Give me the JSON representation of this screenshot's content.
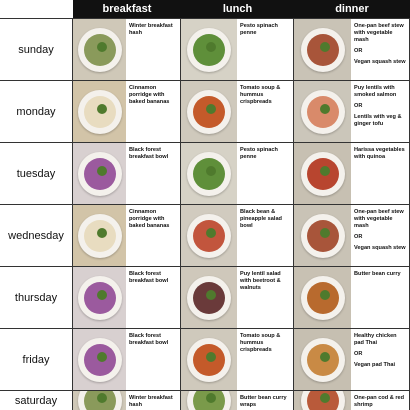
{
  "header": {
    "breakfast": "breakfast",
    "lunch": "lunch",
    "dinner": "dinner"
  },
  "rows": [
    {
      "day": "sunday",
      "breakfast": {
        "text": "Winter breakfast hash",
        "food": "#8a9a5b",
        "bg": "#cfc8b8"
      },
      "lunch": {
        "text": "Pesto spinach penne",
        "food": "#5f8f3a",
        "bg": "#d6d2c6"
      },
      "dinner": {
        "text": "One-pan beef stew with vegetable mash",
        "or": "OR",
        "alt": "Vegan squash stew",
        "food": "#a8553a",
        "bg": "#c9c3b6"
      }
    },
    {
      "day": "monday",
      "breakfast": {
        "text": "Cinnamon porridge with baked bananas",
        "food": "#e8dcc0",
        "bg": "#d2c4a8"
      },
      "lunch": {
        "text": "Tomato soup & hummus crispbreads",
        "food": "#c45a2a",
        "bg": "#cfc9bc"
      },
      "dinner": {
        "text": "Puy lentils with smoked salmon",
        "or": "OR",
        "alt": "Lentils with veg & ginger tofu",
        "food": "#d98a6a",
        "bg": "#cbc6ba"
      }
    },
    {
      "day": "tuesday",
      "breakfast": {
        "text": "Black forest breakfast bowl",
        "food": "#9b5a9e",
        "bg": "#d8d0d0"
      },
      "lunch": {
        "text": "Pesto spinach penne",
        "food": "#5f8f3a",
        "bg": "#d6d2c6"
      },
      "dinner": {
        "text": "Harissa vegetables with quinoa",
        "food": "#b8452f",
        "bg": "#c7c0b2"
      }
    },
    {
      "day": "wednesday",
      "breakfast": {
        "text": "Cinnamon porridge with baked bananas",
        "food": "#e8dcc0",
        "bg": "#d2c4a8"
      },
      "lunch": {
        "text": "Black bean & pineapple salad bowl",
        "food": "#c2553d",
        "bg": "#d1cbbf"
      },
      "dinner": {
        "text": "One-pan beef stew with vegetable mash",
        "or": "OR",
        "alt": "Vegan squash stew",
        "food": "#a8553a",
        "bg": "#c9c3b6"
      }
    },
    {
      "day": "thursday",
      "breakfast": {
        "text": "Black forest breakfast bowl",
        "food": "#9b5a9e",
        "bg": "#d8d0d0"
      },
      "lunch": {
        "text": "Puy lentil salad with beetroot & walnuts",
        "food": "#6a3a3a",
        "bg": "#cfc8bb"
      },
      "dinner": {
        "text": "Butter bean curry",
        "food": "#b86a2e",
        "bg": "#c8c1b3"
      }
    },
    {
      "day": "friday",
      "breakfast": {
        "text": "Black forest breakfast bowl",
        "food": "#9b5a9e",
        "bg": "#d8d0d0"
      },
      "lunch": {
        "text": "Tomato soup & hummus crispbreads",
        "food": "#c45a2a",
        "bg": "#cfc9bc"
      },
      "dinner": {
        "text": "Healthy chicken pad Thai",
        "or": "OR",
        "alt": "Vegan pad Thai",
        "food": "#c98a45",
        "bg": "#c6bfb1"
      }
    },
    {
      "day": "saturday",
      "breakfast": {
        "text": "Winter breakfast hash",
        "food": "#8a9a5b",
        "bg": "#cfc8b8"
      },
      "lunch": {
        "text": "Butter bean curry wraps",
        "food": "#7a9a4a",
        "bg": "#d0cabd"
      },
      "dinner": {
        "text": "One-pan cod & red shrimp",
        "food": "#b95a3a",
        "bg": "#c8c1b3"
      }
    }
  ]
}
